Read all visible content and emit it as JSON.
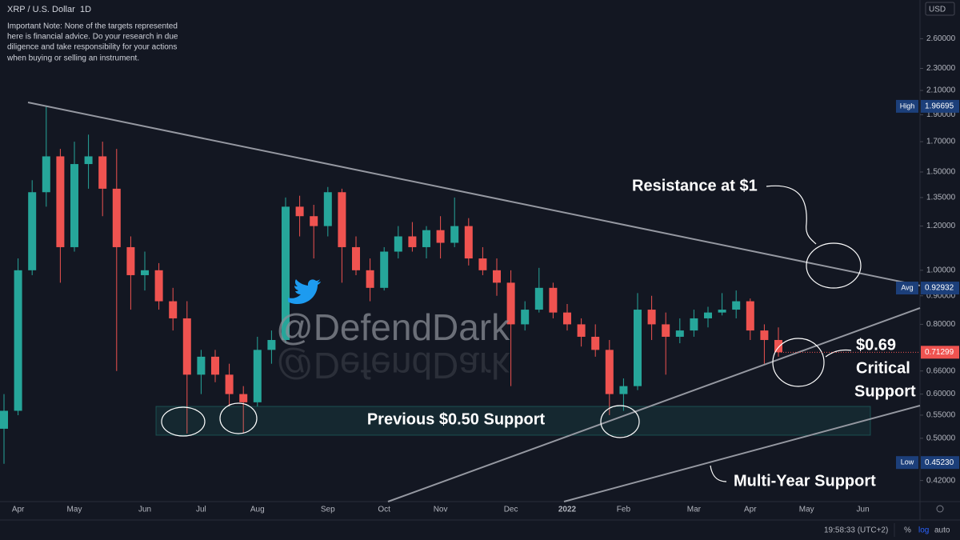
{
  "chart_data": {
    "type": "candlestick",
    "title": "XRP / U.S. Dollar",
    "interval": "1D",
    "currency": "USD",
    "note": [
      "Important Note: None of the targets represented",
      "here is financial advice. Do your research in due",
      "diligence and take responsibility for your actions",
      "when buying or selling an instrument."
    ],
    "categories": [
      null,
      "Apr",
      null,
      null,
      null,
      "May",
      null,
      null,
      null,
      null,
      "Jun",
      null,
      null,
      null,
      "Jul",
      null,
      null,
      null,
      "Aug",
      null,
      null,
      null,
      null,
      "Sep",
      null,
      null,
      null,
      "Oct",
      null,
      null,
      null,
      "Nov",
      null,
      null,
      null,
      null,
      "Dec",
      null,
      null,
      null,
      "2022",
      null,
      null,
      null,
      "Feb",
      null,
      null,
      null,
      null,
      "Mar",
      null,
      null,
      null,
      "Apr",
      null,
      null,
      null,
      "May",
      null,
      null,
      null,
      "Jun",
      null
    ],
    "candles": {
      "up_color": "#26a69a",
      "down_color": "#ef5350",
      "open": [
        0.52,
        0.56,
        1.0,
        1.38,
        1.6,
        1.1,
        1.55,
        1.6,
        1.4,
        1.1,
        0.98,
        1.0,
        0.88,
        0.82,
        0.65,
        0.7,
        0.65,
        0.6,
        0.58,
        0.72,
        0.75,
        1.3,
        1.25,
        1.2,
        1.38,
        1.1,
        1.0,
        0.93,
        1.08,
        1.15,
        1.1,
        1.18,
        1.12,
        1.2,
        1.05,
        1.0,
        0.95,
        0.8,
        0.85,
        0.93,
        0.84,
        0.8,
        0.76,
        0.72,
        0.6,
        0.62,
        0.85,
        0.8,
        0.76,
        0.78,
        0.82,
        0.84,
        0.85,
        0.88,
        0.78,
        0.75,
        null,
        null,
        null,
        null,
        null,
        null,
        null
      ],
      "high": [
        0.6,
        1.05,
        1.45,
        1.97,
        1.65,
        1.7,
        1.75,
        1.7,
        1.65,
        1.15,
        1.08,
        1.03,
        0.93,
        0.88,
        0.72,
        0.72,
        0.68,
        0.62,
        0.76,
        0.78,
        1.35,
        1.36,
        1.31,
        1.41,
        1.4,
        1.15,
        1.05,
        1.1,
        1.2,
        1.22,
        1.2,
        1.25,
        1.35,
        1.24,
        1.1,
        1.05,
        1.0,
        0.88,
        1.01,
        0.95,
        0.87,
        0.82,
        0.8,
        0.75,
        0.64,
        0.91,
        0.9,
        0.84,
        0.82,
        0.85,
        0.86,
        0.91,
        0.92,
        0.89,
        0.8,
        0.79,
        null,
        null,
        null,
        null,
        null,
        null,
        null
      ],
      "low": [
        0.45,
        0.55,
        0.98,
        1.3,
        0.95,
        1.08,
        1.4,
        1.25,
        0.66,
        0.85,
        0.92,
        0.85,
        0.78,
        0.51,
        0.6,
        0.63,
        0.57,
        0.51,
        0.57,
        0.68,
        0.74,
        1.15,
        1.05,
        1.15,
        0.95,
        0.98,
        0.88,
        0.92,
        1.05,
        1.08,
        1.05,
        1.05,
        1.1,
        1.02,
        0.98,
        0.9,
        0.62,
        0.78,
        0.84,
        0.82,
        0.78,
        0.73,
        0.7,
        0.55,
        0.56,
        0.61,
        0.75,
        0.65,
        0.74,
        0.76,
        0.79,
        0.83,
        0.82,
        0.75,
        0.68,
        0.7,
        null,
        null,
        null,
        null,
        null,
        null,
        null
      ],
      "close": [
        0.56,
        1.0,
        1.38,
        1.6,
        1.1,
        1.55,
        1.6,
        1.4,
        1.1,
        0.98,
        1.0,
        0.88,
        0.82,
        0.65,
        0.7,
        0.65,
        0.6,
        0.58,
        0.72,
        0.75,
        1.3,
        1.25,
        1.2,
        1.38,
        1.1,
        1.0,
        0.93,
        1.08,
        1.15,
        1.1,
        1.18,
        1.12,
        1.2,
        1.05,
        1.0,
        0.95,
        0.8,
        0.85,
        0.93,
        0.84,
        0.8,
        0.76,
        0.72,
        0.6,
        0.62,
        0.85,
        0.8,
        0.76,
        0.78,
        0.82,
        0.84,
        0.85,
        0.88,
        0.78,
        0.75,
        0.71299,
        null,
        null,
        null,
        null,
        null,
        null,
        null
      ]
    },
    "log_scale": true,
    "grid": false,
    "ylim": [
      0.385,
      3.05
    ],
    "yticks": [
      {
        "value": 0.42,
        "label": "0.42000"
      },
      {
        "value": 0.5,
        "label": "0.50000"
      },
      {
        "value": 0.55,
        "label": "0.55000"
      },
      {
        "value": 0.6,
        "label": "0.60000"
      },
      {
        "value": 0.66,
        "label": "0.66000"
      },
      {
        "value": 0.8,
        "label": "0.80000"
      },
      {
        "value": 0.9,
        "label": "0.90000"
      },
      {
        "value": 1.0,
        "label": "1.00000"
      },
      {
        "value": 1.2,
        "label": "1.20000"
      },
      {
        "value": 1.35,
        "label": "1.35000"
      },
      {
        "value": 1.5,
        "label": "1.50000"
      },
      {
        "value": 1.7,
        "label": "1.70000"
      },
      {
        "value": 1.9,
        "label": "1.90000"
      },
      {
        "value": 2.1,
        "label": "2.10000"
      },
      {
        "value": 2.3,
        "label": "2.30000"
      },
      {
        "value": 2.6,
        "label": "2.60000"
      }
    ],
    "markers": [
      {
        "name": "High",
        "value": 1.96695
      },
      {
        "name": "Avg",
        "value": 0.92932
      },
      {
        "name": "Low",
        "value": 0.4523,
        "label": "0.45230"
      }
    ],
    "annotations": {
      "resistance": "Resistance at $1",
      "critical": [
        "$0.69",
        "Critical",
        "Support"
      ],
      "previous": "Previous $0.50 Support",
      "multi_year": "Multi-Year Support",
      "watermark": "@DefendDark"
    }
  },
  "status_bar": {
    "time": "19:58:33 (UTC+2)",
    "percent": "%",
    "log": "log",
    "auto": "auto"
  }
}
